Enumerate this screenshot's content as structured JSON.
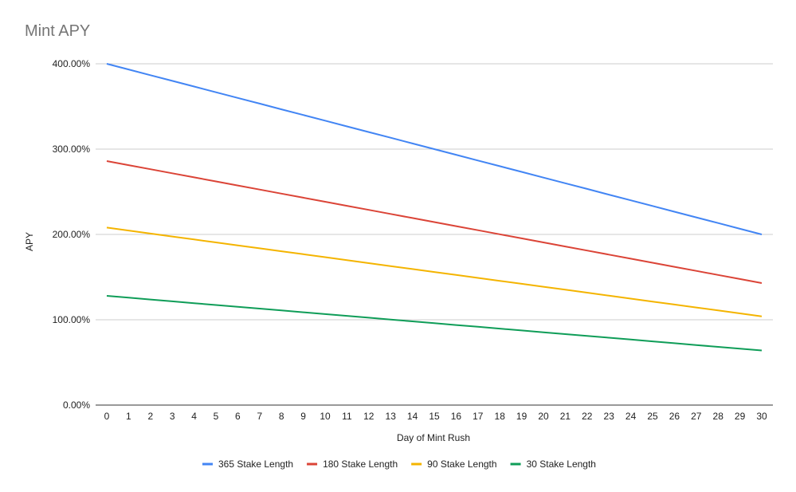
{
  "chart_data": {
    "type": "line",
    "title": "Mint APY",
    "xlabel": "Day of Mint Rush",
    "ylabel": "APY",
    "x": [
      0,
      1,
      2,
      3,
      4,
      5,
      6,
      7,
      8,
      9,
      10,
      11,
      12,
      13,
      14,
      15,
      16,
      17,
      18,
      19,
      20,
      21,
      22,
      23,
      24,
      25,
      26,
      27,
      28,
      29,
      30
    ],
    "ylim": [
      0,
      400
    ],
    "yticks": [
      0,
      100,
      200,
      300,
      400
    ],
    "ytick_labels": [
      "0.00%",
      "100.00%",
      "200.00%",
      "300.00%",
      "400.00%"
    ],
    "grid": true,
    "legend_position": "bottom",
    "series": [
      {
        "name": "365 Stake Length",
        "color": "#4285f4",
        "start": 400,
        "end": 200
      },
      {
        "name": "180 Stake Length",
        "color": "#db4437",
        "start": 286,
        "end": 143
      },
      {
        "name": "90 Stake Length",
        "color": "#f4b400",
        "start": 208,
        "end": 104
      },
      {
        "name": "30 Stake Length",
        "color": "#0f9d58",
        "start": 128,
        "end": 64
      }
    ]
  }
}
